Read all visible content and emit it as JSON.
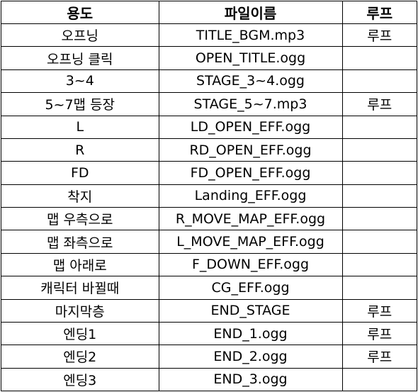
{
  "header": {
    "usage": "용도",
    "filename": "파일이름",
    "loop": "루프"
  },
  "rows": [
    {
      "usage": "오프닝",
      "filename": "TITLE_BGM.mp3",
      "loop": "루프"
    },
    {
      "usage": "오프닝 클릭",
      "filename": "OPEN_TITLE.ogg",
      "loop": ""
    },
    {
      "usage": "3~4",
      "filename": "STAGE_3~4.ogg",
      "loop": ""
    },
    {
      "usage": "5~7맵 등장",
      "filename": "STAGE_5~7.mp3",
      "loop": "루프"
    },
    {
      "usage": "L",
      "filename": "LD_OPEN_EFF.ogg",
      "loop": ""
    },
    {
      "usage": "R",
      "filename": "RD_OPEN_EFF.ogg",
      "loop": ""
    },
    {
      "usage": "FD",
      "filename": "FD_OPEN_EFF.ogg",
      "loop": ""
    },
    {
      "usage": "착지",
      "filename": "Landing_EFF.ogg",
      "loop": ""
    },
    {
      "usage": "맵 우측으로",
      "filename": "R_MOVE_MAP_EFF.ogg",
      "loop": ""
    },
    {
      "usage": "맵 좌측으로",
      "filename": "L_MOVE_MAP_EFF.ogg",
      "loop": ""
    },
    {
      "usage": "맵 아래로",
      "filename": "F_DOWN_EFF.ogg",
      "loop": ""
    },
    {
      "usage": "캐릭터 바뀔때",
      "filename": "CG_EFF.ogg",
      "loop": ""
    },
    {
      "usage": "마지막층",
      "filename": "END_STAGE",
      "loop": "루프"
    },
    {
      "usage": "엔딩1",
      "filename": "END_1.ogg",
      "loop": "루프"
    },
    {
      "usage": "엔딩2",
      "filename": "END_2.ogg",
      "loop": "루프"
    },
    {
      "usage": "엔딩3",
      "filename": "END_3.ogg",
      "loop": ""
    }
  ]
}
